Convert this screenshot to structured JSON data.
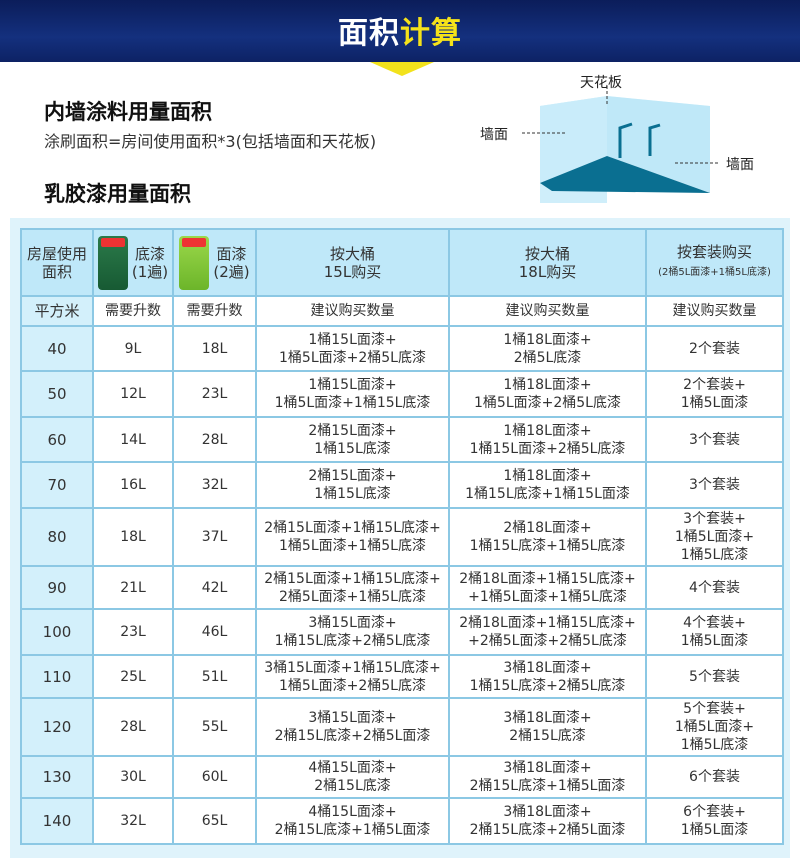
{
  "banner": {
    "title_white": "面积",
    "title_yellow": "计算"
  },
  "section1": {
    "title": "内墙涂料用量面积",
    "formula": "涂刷面积=房间使用面积*3(包括墙面和天花板)"
  },
  "diagram": {
    "ceiling": "天花板",
    "wall_left": "墙面",
    "wall_right": "墙面"
  },
  "section2": {
    "title": "乳胶漆用量面积"
  },
  "table": {
    "headers": {
      "area": "房屋使用面积",
      "primer": "底漆",
      "primer_coats": "(1遍)",
      "topcoat": "面漆",
      "topcoat_coats": "(2遍)",
      "buy15": "按大桶15L购买",
      "buy18": "按大桶18L购买",
      "buyset": "按套装购买",
      "buyset_note": "(2桶5L面漆+1桶5L底漆)"
    },
    "subheaders": [
      "平方米",
      "需要升数",
      "需要升数",
      "建议购买数量",
      "建议购买数量",
      "建议购买数量"
    ],
    "rows": [
      [
        "40",
        "9L",
        "18L",
        "1桶15L面漆+\n1桶5L面漆+2桶5L底漆",
        "1桶18L面漆+\n2桶5L底漆",
        "2个套装"
      ],
      [
        "50",
        "12L",
        "23L",
        "1桶15L面漆+\n1桶5L面漆+1桶15L底漆",
        "1桶18L面漆+\n1桶5L面漆+2桶5L底漆",
        "2个套装+\n1桶5L面漆"
      ],
      [
        "60",
        "14L",
        "28L",
        "2桶15L面漆+\n1桶15L底漆",
        "1桶18L面漆+\n1桶15L面漆+2桶5L底漆",
        "3个套装"
      ],
      [
        "70",
        "16L",
        "32L",
        "2桶15L面漆+\n1桶15L底漆",
        "1桶18L面漆+\n1桶15L底漆+1桶15L面漆",
        "3个套装"
      ],
      [
        "80",
        "18L",
        "37L",
        "2桶15L面漆+1桶15L底漆+\n1桶5L面漆+1桶5L底漆",
        "2桶18L面漆+\n1桶15L底漆+1桶5L底漆",
        "3个套装+\n1桶5L面漆+\n1桶5L底漆"
      ],
      [
        "90",
        "21L",
        "42L",
        "2桶15L面漆+1桶15L底漆+\n2桶5L面漆+1桶5L底漆",
        "2桶18L面漆+1桶15L底漆+\n+1桶5L面漆+1桶5L底漆",
        "4个套装"
      ],
      [
        "100",
        "23L",
        "46L",
        "3桶15L面漆+\n1桶15L底漆+2桶5L底漆",
        "2桶18L面漆+1桶15L底漆+\n+2桶5L面漆+2桶5L底漆",
        "4个套装+\n1桶5L面漆"
      ],
      [
        "110",
        "25L",
        "51L",
        "3桶15L面漆+1桶15L底漆+\n1桶5L面漆+2桶5L底漆",
        "3桶18L面漆+\n1桶15L底漆+2桶5L底漆",
        "5个套装"
      ],
      [
        "120",
        "28L",
        "55L",
        "3桶15L面漆+\n2桶15L底漆+2桶5L面漆",
        "3桶18L面漆+\n2桶15L底漆",
        "5个套装+\n1桶5L面漆+\n1桶5L底漆"
      ],
      [
        "130",
        "30L",
        "60L",
        "4桶15L面漆+\n2桶15L底漆",
        "3桶18L面漆+\n2桶15L底漆+1桶5L面漆",
        "6个套装"
      ],
      [
        "140",
        "32L",
        "65L",
        "4桶15L面漆+\n2桶15L底漆+1桶5L面漆",
        "3桶18L面漆+\n2桶15L底漆+2桶5L面漆",
        "6个套装+\n1桶5L面漆"
      ]
    ]
  }
}
